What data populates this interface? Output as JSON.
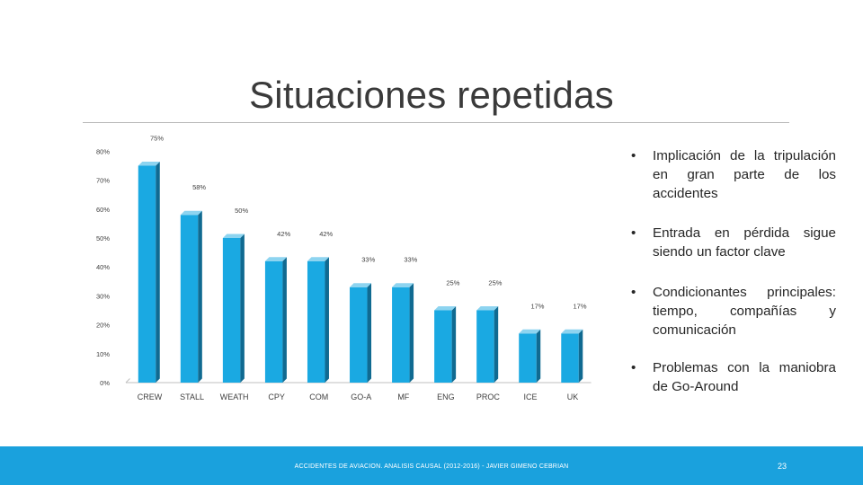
{
  "slide": {
    "title": "Situaciones repetidas",
    "footer_text": "ACCIDENTES DE AVIACION. ANALISIS CAUSAL (2012-2016) - JAVIER GIMENO CEBRIAN",
    "page_number": "23"
  },
  "bullets": [
    {
      "text": "Implicación de la tripulación en gran parte de los accidentes"
    },
    {
      "text": "Entrada en pérdida sigue siendo un factor clave"
    },
    {
      "text": "Condicionantes principales: tiempo, compañías y comunicación"
    },
    {
      "text": "Problemas con la maniobra de Go-Around"
    }
  ],
  "chart_data": {
    "type": "bar",
    "title": "",
    "xlabel": "",
    "ylabel": "",
    "categories": [
      "CREW",
      "STALL",
      "WEATH",
      "CPY",
      "COM",
      "GO-A",
      "MF",
      "ENG",
      "PROC",
      "ICE",
      "UK"
    ],
    "values": [
      75,
      58,
      50,
      42,
      42,
      33,
      33,
      25,
      25,
      17,
      17
    ],
    "data_labels": [
      "75%",
      "58%",
      "50%",
      "42%",
      "42%",
      "33%",
      "33%",
      "25%",
      "25%",
      "17%",
      "17%"
    ],
    "ylim": [
      0,
      80
    ],
    "y_ticks": [
      0,
      10,
      20,
      30,
      40,
      50,
      60,
      70,
      80
    ],
    "y_tick_labels": [
      "0%",
      "10%",
      "20%",
      "30%",
      "40%",
      "50%",
      "60%",
      "70%",
      "80%"
    ],
    "colors": {
      "front": "#1aa9e2",
      "top": "#8dd4f0",
      "side": "#106a91",
      "label": "#404040",
      "axis": "#bfbfbf"
    }
  }
}
